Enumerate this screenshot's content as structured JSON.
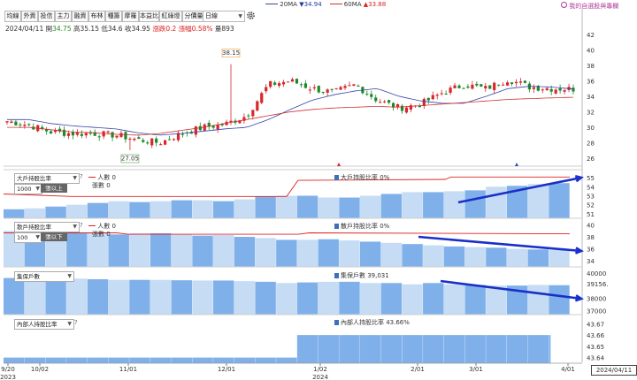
{
  "toolbar": {
    "buttons": [
      "均線",
      "外資",
      "投信",
      "主力",
      "融資",
      "布林",
      "種籌",
      "摩羅",
      "本益比",
      "紅綠燈",
      "分價量"
    ],
    "period_select": "日線"
  },
  "legend_top": {
    "ma20_label": "20MA",
    "ma20_value": "▼34.94",
    "ma60_label": "60MA",
    "ma60_value": "▲33.88",
    "ma20_color": "#3344aa",
    "ma60_color": "#cc3333"
  },
  "top_link": "我的自選股與專欄",
  "info": {
    "date": "2024/04/11",
    "open_label": "開",
    "open": "34.75",
    "high_label": "高",
    "high": "35.15",
    "low_label": "低",
    "low": "34.6",
    "close_label": "收",
    "close": "34.95",
    "change_label": "漲跌",
    "change": "0.2",
    "pct_label": "漲幅",
    "pct": "0.58%",
    "vol_label": "量",
    "vol": "893"
  },
  "price_panel": {
    "y_ticks": [
      "42",
      "40",
      "38",
      "36",
      "34",
      "32",
      "30",
      "28",
      "26"
    ],
    "peak_label": "38.15",
    "trough_label": "27.05"
  },
  "panel1": {
    "select": "大戶持股比率",
    "threshold_select": "1000",
    "threshold_btn": "張以上",
    "people_label": "人數 0",
    "shares_label": "張數 0",
    "legend": "大戶持股比率 0%",
    "y_ticks": [
      "55",
      "54",
      "53",
      "52",
      "51"
    ]
  },
  "panel2": {
    "select": "散戶持股比率",
    "threshold_select": "100",
    "threshold_btn": "張以下",
    "people_label": "人數 0",
    "shares_label": "張數 0",
    "legend": "散戶持股比率 0%",
    "y_ticks": [
      "40",
      "38",
      "36",
      "34"
    ]
  },
  "panel3": {
    "select": "集保戶數",
    "legend": "集保戶數 39,031",
    "y_ticks": [
      "40000",
      "39156.",
      "38000",
      "37000"
    ]
  },
  "panel4": {
    "select": "內部人持股比率",
    "legend": "內部人持股比率 43.66%",
    "y_ticks": [
      "43.67",
      "43.66",
      "43.65",
      "43.64"
    ]
  },
  "x_axis": {
    "labels": [
      "9/20",
      "10/02",
      "11/01",
      "12/01",
      "1/02",
      "2/01",
      "3/01",
      "4/01"
    ],
    "years": [
      "2023",
      "2024"
    ],
    "current_date": "2024/04/11"
  },
  "colors": {
    "up": "#d9262b",
    "down": "#1d8a2a",
    "bar_dark": "#7fb0ea",
    "bar_light": "#c5dcf4",
    "arrow": "#1a2fc8"
  },
  "chart_data": [
    {
      "type": "candlestick",
      "title": "",
      "ylim": [
        25,
        43
      ],
      "series": [
        {
          "name": "20MA",
          "values": [
            31,
            31,
            30.5,
            30.2,
            30,
            29.8,
            29.3,
            29.0,
            29.2,
            29.5,
            29.8,
            30,
            31,
            32.3,
            33.5,
            34.2,
            34.7,
            35,
            34,
            33.4,
            33.1,
            33.1,
            34,
            35,
            35.3,
            35.2,
            34.94
          ]
        },
        {
          "name": "60MA",
          "values": [
            30,
            30,
            29.7,
            29.4,
            29.3,
            29.1,
            29.0,
            29.2,
            29.6,
            30.0,
            30.5,
            31.0,
            31.5,
            32.0,
            32.3,
            32.5,
            32.6,
            32.7,
            32.6,
            32.8,
            33.0,
            33.2,
            33.4,
            33.6,
            33.7,
            33.8,
            33.88
          ]
        }
      ],
      "closes": [
        30.8,
        30.3,
        29.4,
        29.2,
        29.2,
        29.0,
        28.4,
        28.0,
        29.2,
        30,
        30.4,
        31.5,
        35.5,
        36,
        35,
        34.5,
        35.5,
        33.5,
        32.5,
        33,
        34.5,
        35.5,
        35,
        36.2,
        35.2,
        35,
        34.95
      ]
    },
    {
      "type": "bar",
      "series": [
        {
          "name": "大戶持股比率",
          "values": [
            51.5,
            51.6,
            51.8,
            52.0,
            52.2,
            52.4,
            52.3,
            52.4,
            52.5,
            52.5,
            52.4,
            52.6,
            52.9,
            53.0,
            53.0,
            52.8,
            52.8,
            53.0,
            53.2,
            53.4,
            53.4,
            53.5,
            53.6,
            54.0,
            54.1,
            54.3,
            54.4
          ]
        }
      ]
    },
    {
      "type": "bar",
      "series": [
        {
          "name": "散戶持股比率",
          "values": [
            39.0,
            38.8,
            38.9,
            38.7,
            38.6,
            38.4,
            38.6,
            38.6,
            38.4,
            38.2,
            38.3,
            38.0,
            37.8,
            37.5,
            37.5,
            37.6,
            37.4,
            37.2,
            37.0,
            36.8,
            36.6,
            36.4,
            36.3,
            36.2,
            36.0,
            35.9,
            35.8
          ]
        }
      ]
    },
    {
      "type": "bar",
      "series": [
        {
          "name": "集保戶數",
          "values": [
            39600,
            39600,
            39600,
            39550,
            39500,
            39450,
            39450,
            39450,
            39420,
            39400,
            39400,
            39350,
            39300,
            39200,
            39250,
            39300,
            39300,
            39200,
            39200,
            39100,
            39200,
            39100,
            39050,
            39000,
            39000,
            39050,
            39031
          ]
        }
      ]
    },
    {
      "type": "bar",
      "series": [
        {
          "name": "內部人持股比率",
          "values": [
            43.64,
            43.64,
            43.64,
            43.64,
            43.64,
            43.64,
            43.64,
            43.64,
            43.64,
            43.64,
            43.64,
            43.64,
            43.64,
            43.64,
            43.66,
            43.66,
            43.66,
            43.66,
            43.66,
            43.66,
            43.66,
            43.66,
            43.66,
            43.66,
            43.66,
            43.66,
            43.66
          ]
        }
      ]
    }
  ]
}
